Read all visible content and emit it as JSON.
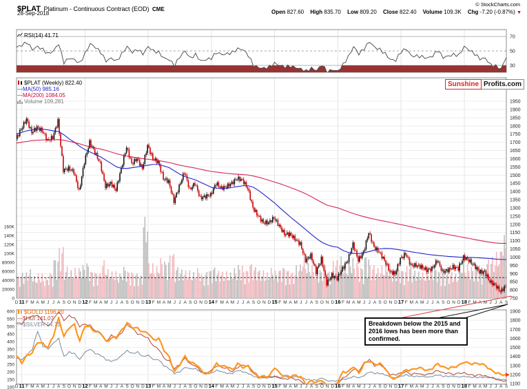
{
  "header": {
    "symbol": "$PLAT",
    "name": "Platinum - Continuous Contract (EOD)",
    "exchange": "CME",
    "date": "28-Sep-2018",
    "copyright": "© StockCharts.com",
    "quote": [
      {
        "label": "Open",
        "value": "827.60"
      },
      {
        "label": "High",
        "value": "835.70"
      },
      {
        "label": "Low",
        "value": "809.20"
      },
      {
        "label": "Close",
        "value": "822.40"
      },
      {
        "label": "Volume",
        "value": "109.3K"
      },
      {
        "label": "Chg",
        "value": "-7.20 (-0.87%)"
      }
    ]
  },
  "watermark": {
    "left": "Sunshine",
    "right": "Profits.com"
  },
  "annotation": "Breakdown below the 2015 and 2016 lows has been more than confirmed.",
  "legends": {
    "rsi": "RSI(14) 41.71",
    "main_symbol": "$PLAT (Weekly) 822.40",
    "ma50": "—MA(50) 985.16",
    "ma200": "—MA(200) 1084.05",
    "volume": "Volume 109,281",
    "gold": "$GOLD 1196.20",
    "hui": "—$HUI 141.07",
    "silver": "—$SILVER 14.71"
  },
  "colors": {
    "candle_up": "#111111",
    "candle_down": "#cc0000",
    "ma50": "#2222cc",
    "ma200": "#cc0033",
    "vol_up": "#bdbdbd",
    "vol_down": "#f2b8be",
    "gold": "#ff8800",
    "hui": "#aa4433",
    "silver": "#778899",
    "rsi_line": "#444444",
    "rsi_fill": "#993333",
    "accent_red": "#cc0000",
    "annotation_line": "#dd4444"
  },
  "chart_data": [
    {
      "panel": "rsi",
      "type": "line",
      "indicator": "RSI(14)",
      "last": 41.71,
      "ylim": [
        20,
        80
      ],
      "yticks": [
        70,
        50,
        30
      ],
      "overbought": 70,
      "oversold": 30,
      "freq": "monthly (Dec-2010 .. Sep-2018, weekly chart approximated)",
      "values": [
        55,
        58,
        62,
        52,
        56,
        52,
        46,
        50,
        60,
        34,
        40,
        38,
        33,
        46,
        60,
        55,
        48,
        36,
        40,
        36,
        46,
        56,
        48,
        52,
        46,
        56,
        50,
        48,
        40,
        38,
        30,
        42,
        50,
        40,
        45,
        36,
        38,
        40,
        48,
        45,
        46,
        48,
        53,
        52,
        44,
        30,
        27,
        26,
        28,
        33,
        30,
        28,
        29,
        27,
        25,
        22,
        26,
        23,
        31,
        21,
        24,
        22,
        31,
        42,
        56,
        46,
        53,
        63,
        55,
        52,
        46,
        38,
        37,
        49,
        53,
        43,
        43,
        42,
        40,
        43,
        51,
        41,
        43,
        45,
        44,
        56,
        51,
        46,
        39,
        40,
        31,
        29,
        25,
        41.71
      ]
    },
    {
      "panel": "main",
      "type": "candlestick",
      "symbol": "$PLAT",
      "timeframe": "Weekly",
      "last": 822.4,
      "ylim": [
        750,
        1950
      ],
      "ytick_step": 50,
      "support_line": 875,
      "volume_ylim": [
        0,
        160000
      ],
      "volume_ticks": [
        {
          "v": 160,
          "label": "160K"
        },
        {
          "v": 140,
          "label": "140K"
        },
        {
          "v": 120,
          "label": "120K"
        },
        {
          "v": 100,
          "label": "100K"
        },
        {
          "v": 80,
          "label": "80000"
        },
        {
          "v": 60,
          "label": "60000"
        },
        {
          "v": 40,
          "label": "40000"
        },
        {
          "v": 20,
          "label": "20000"
        },
        {
          "v": 0,
          "label": "0"
        }
      ],
      "x_labels": [
        "D",
        "11",
        "F",
        "M",
        "A",
        "M",
        "J",
        "J",
        "A",
        "S",
        "O",
        "N",
        "D",
        "12",
        "F",
        "M",
        "A",
        "M",
        "J",
        "J",
        "A",
        "S",
        "O",
        "N",
        "D",
        "13",
        "F",
        "M",
        "A",
        "M",
        "J",
        "J",
        "A",
        "S",
        "O",
        "N",
        "D",
        "14",
        "F",
        "M",
        "A",
        "M",
        "J",
        "J",
        "A",
        "S",
        "O",
        "N",
        "D",
        "15",
        "F",
        "M",
        "A",
        "M",
        "J",
        "J",
        "A",
        "S",
        "O",
        "N",
        "D",
        "16",
        "F",
        "M",
        "A",
        "M",
        "J",
        "J",
        "A",
        "S",
        "O",
        "N",
        "D",
        "17",
        "F",
        "M",
        "A",
        "M",
        "J",
        "J",
        "A",
        "S",
        "O",
        "N",
        "D",
        "18",
        "F",
        "M",
        "A",
        "M",
        "J",
        "J",
        "A",
        "S"
      ],
      "close": [
        1720,
        1780,
        1840,
        1760,
        1790,
        1770,
        1710,
        1730,
        1830,
        1530,
        1540,
        1520,
        1400,
        1580,
        1700,
        1640,
        1570,
        1430,
        1450,
        1410,
        1540,
        1670,
        1570,
        1600,
        1540,
        1680,
        1600,
        1580,
        1480,
        1460,
        1340,
        1430,
        1520,
        1410,
        1450,
        1360,
        1370,
        1380,
        1450,
        1420,
        1430,
        1450,
        1480,
        1470,
        1420,
        1300,
        1250,
        1210,
        1210,
        1240,
        1190,
        1140,
        1140,
        1110,
        1080,
        980,
        1010,
        910,
        990,
        840,
        890,
        870,
        930,
        980,
        1080,
        980,
        1030,
        1150,
        1060,
        1030,
        980,
        910,
        900,
        990,
        1020,
        950,
        950,
        940,
        920,
        930,
        980,
        910,
        920,
        940,
        930,
        1000,
        980,
        950,
        910,
        910,
        850,
        830,
        790,
        822
      ],
      "ma50": [
        1750,
        1760,
        1770,
        1775,
        1780,
        1780,
        1775,
        1770,
        1765,
        1745,
        1720,
        1700,
        1675,
        1655,
        1640,
        1625,
        1610,
        1590,
        1570,
        1550,
        1540,
        1540,
        1545,
        1550,
        1555,
        1560,
        1565,
        1565,
        1555,
        1545,
        1525,
        1505,
        1490,
        1480,
        1470,
        1455,
        1440,
        1425,
        1420,
        1420,
        1420,
        1425,
        1430,
        1435,
        1435,
        1425,
        1405,
        1380,
        1355,
        1330,
        1300,
        1272,
        1244,
        1218,
        1192,
        1165,
        1138,
        1112,
        1090,
        1075,
        1065,
        1060,
        1040,
        1028,
        1022,
        1022,
        1026,
        1034,
        1043,
        1050,
        1053,
        1052,
        1048,
        1043,
        1038,
        1032,
        1027,
        1022,
        1017,
        1013,
        1010,
        1007,
        1004,
        1002,
        1000,
        999,
        998,
        997,
        995,
        993,
        991,
        988,
        986,
        985
      ],
      "ma200": [
        1695,
        1700,
        1705,
        1710,
        1712,
        1714,
        1715,
        1715,
        1716,
        1712,
        1705,
        1698,
        1690,
        1680,
        1672,
        1665,
        1658,
        1650,
        1640,
        1630,
        1622,
        1616,
        1610,
        1605,
        1600,
        1596,
        1592,
        1588,
        1582,
        1576,
        1568,
        1560,
        1554,
        1548,
        1542,
        1535,
        1528,
        1522,
        1518,
        1514,
        1510,
        1507,
        1505,
        1503,
        1500,
        1494,
        1486,
        1477,
        1467,
        1457,
        1447,
        1436,
        1424,
        1412,
        1399,
        1384,
        1368,
        1350,
        1332,
        1316,
        1308,
        1300,
        1288,
        1276,
        1265,
        1255,
        1246,
        1238,
        1231,
        1224,
        1218,
        1211,
        1205,
        1198,
        1191,
        1184,
        1177,
        1170,
        1163,
        1156,
        1149,
        1143,
        1137,
        1131,
        1125,
        1119,
        1113,
        1107,
        1101,
        1095,
        1090,
        1086,
        1084,
        1084
      ],
      "volume_k": [
        38,
        40,
        45,
        50,
        38,
        42,
        36,
        44,
        70,
        90,
        55,
        48,
        52,
        58,
        62,
        48,
        44,
        66,
        50,
        46,
        42,
        55,
        48,
        44,
        40,
        150,
        60,
        55,
        70,
        65,
        80,
        55,
        50,
        48,
        45,
        52,
        42,
        50,
        55,
        48,
        46,
        44,
        52,
        58,
        50,
        62,
        55,
        48,
        44,
        52,
        48,
        55,
        50,
        46,
        58,
        72,
        60,
        56,
        50,
        62,
        48,
        66,
        72,
        58,
        70,
        62,
        55,
        75,
        58,
        52,
        56,
        60,
        48,
        55,
        50,
        58,
        48,
        46,
        44,
        50,
        55,
        48,
        44,
        46,
        42,
        62,
        58,
        55,
        60,
        52,
        68,
        72,
        80,
        109
      ]
    },
    {
      "panel": "bottom",
      "type": "line",
      "ylim_left": [
        100,
        600
      ],
      "ylim_right": [
        1100,
        1900
      ],
      "ytick_step_left": 50,
      "ytick_step_right": 100,
      "series": [
        {
          "name": "$GOLD",
          "last": 1196.2,
          "axis": "right",
          "values": [
            1405,
            1330,
            1410,
            1440,
            1560,
            1540,
            1500,
            1630,
            1820,
            1620,
            1720,
            1750,
            1570,
            1740,
            1720,
            1670,
            1660,
            1560,
            1600,
            1620,
            1690,
            1770,
            1720,
            1710,
            1670,
            1660,
            1580,
            1600,
            1470,
            1390,
            1230,
            1310,
            1400,
            1330,
            1320,
            1250,
            1200,
            1240,
            1320,
            1290,
            1290,
            1250,
            1320,
            1280,
            1290,
            1210,
            1170,
            1180,
            1180,
            1280,
            1210,
            1180,
            1180,
            1190,
            1170,
            1090,
            1130,
            1110,
            1140,
            1060,
            1060,
            1120,
            1230,
            1230,
            1290,
            1210,
            1320,
            1350,
            1310,
            1320,
            1270,
            1170,
            1150,
            1210,
            1250,
            1250,
            1270,
            1270,
            1240,
            1270,
            1320,
            1280,
            1270,
            1280,
            1300,
            1340,
            1320,
            1320,
            1320,
            1300,
            1250,
            1220,
            1200,
            1196.2
          ]
        },
        {
          "name": "$HUI",
          "last": 141.07,
          "axis": "left",
          "values": [
            520,
            520,
            555,
            565,
            575,
            530,
            500,
            545,
            600,
            540,
            570,
            555,
            500,
            515,
            505,
            470,
            460,
            400,
            440,
            420,
            460,
            510,
            490,
            450,
            440,
            420,
            370,
            350,
            290,
            270,
            220,
            250,
            290,
            250,
            240,
            200,
            190,
            210,
            240,
            230,
            220,
            200,
            230,
            245,
            240,
            200,
            170,
            160,
            165,
            170,
            160,
            150,
            160,
            150,
            140,
            110,
            120,
            110,
            125,
            105,
            112,
            122,
            160,
            180,
            220,
            205,
            260,
            280,
            240,
            250,
            220,
            180,
            182,
            192,
            200,
            182,
            192,
            180,
            182,
            192,
            210,
            192,
            192,
            182,
            192,
            192,
            182,
            175,
            180,
            172,
            165,
            152,
            140,
            141.07
          ]
        },
        {
          "name": "$SILVER",
          "last": 14.71,
          "axis": "left_x10",
          "values": [
            29,
            28,
            31,
            35,
            47,
            37,
            35,
            39,
            42,
            30,
            33,
            32,
            28,
            33,
            35,
            32,
            31,
            28,
            27,
            28,
            31,
            34,
            32,
            33,
            30,
            31,
            28,
            28,
            24,
            22,
            19,
            20,
            23,
            22,
            22,
            20,
            19,
            19,
            21,
            20,
            19,
            19,
            21,
            20,
            19,
            17,
            16,
            16,
            16,
            17,
            16,
            17,
            16,
            17,
            16,
            15,
            14.5,
            14.5,
            16,
            14,
            14,
            14,
            15,
            15.5,
            17,
            16,
            17.5,
            20,
            19,
            19,
            18,
            16.5,
            16,
            17,
            18,
            17,
            17,
            17,
            16.5,
            17,
            18,
            17,
            17,
            17,
            16.5,
            17,
            16.5,
            16.3,
            16.3,
            16.4,
            16,
            15.5,
            14.8,
            14.71
          ]
        }
      ]
    }
  ]
}
